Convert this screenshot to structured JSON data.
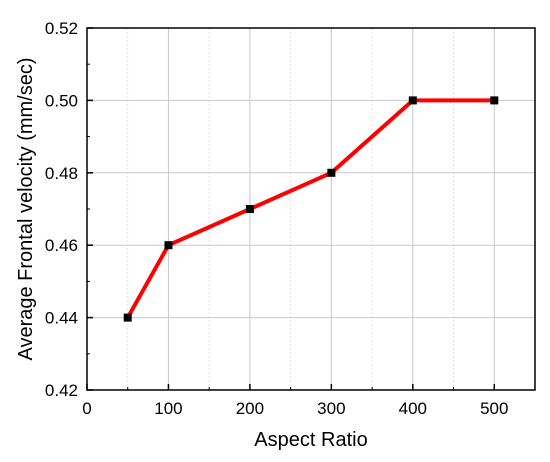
{
  "chart_data": {
    "type": "line",
    "title": "",
    "xlabel": "Aspect Ratio",
    "ylabel": "Average Frontal velocity (mm/sec)",
    "xlim": [
      0,
      550
    ],
    "ylim": [
      0.42,
      0.52
    ],
    "x_ticks": [
      0,
      100,
      200,
      300,
      400,
      500
    ],
    "x_tick_labels": [
      "0",
      "100",
      "200",
      "300",
      "400",
      "500"
    ],
    "y_ticks": [
      0.42,
      0.44,
      0.46,
      0.48,
      0.5,
      0.52
    ],
    "y_tick_labels": [
      "0.42",
      "0.44",
      "0.46",
      "0.48",
      "0.50",
      "0.52"
    ],
    "grid": true,
    "series": [
      {
        "x": [
          50,
          100,
          200,
          300,
          400,
          500
        ],
        "y": [
          0.44,
          0.46,
          0.47,
          0.48,
          0.5,
          0.5
        ],
        "line_color": "#ff0000",
        "marker_color": "#000000",
        "marker": "square"
      }
    ]
  }
}
